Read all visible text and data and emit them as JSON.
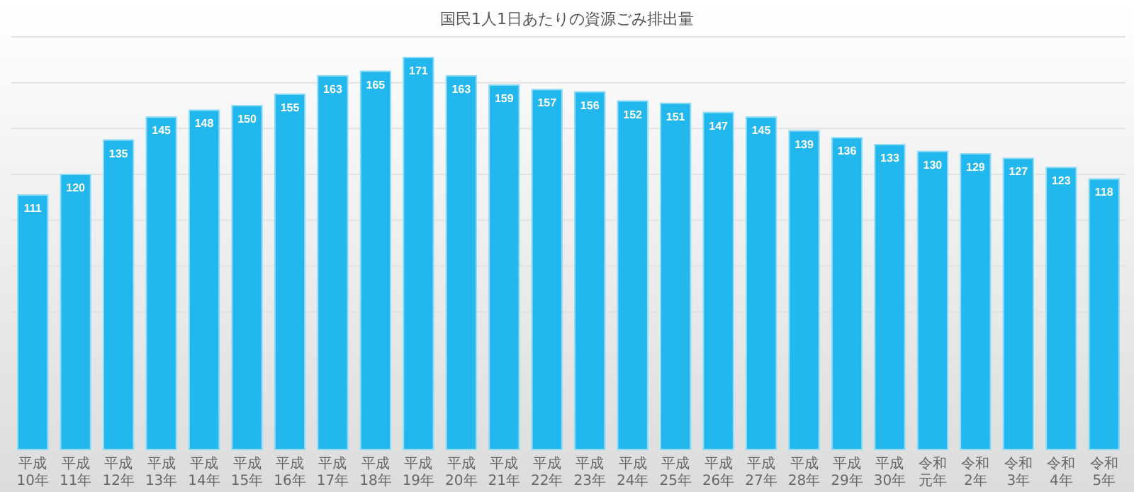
{
  "chart_data": {
    "type": "bar",
    "title": "国民1人1日あたりの資源ごみ排出量",
    "categories": [
      "平成10年",
      "平成11年",
      "平成12年",
      "平成13年",
      "平成14年",
      "平成15年",
      "平成16年",
      "平成17年",
      "平成18年",
      "平成19年",
      "平成20年",
      "平成21年",
      "平成22年",
      "平成23年",
      "平成24年",
      "平成25年",
      "平成26年",
      "平成27年",
      "平成28年",
      "平成29年",
      "平成30年",
      "令和元年",
      "令和2年",
      "令和3年",
      "令和4年",
      "令和5年"
    ],
    "values": [
      111,
      120,
      135,
      145,
      148,
      150,
      155,
      163,
      165,
      171,
      163,
      159,
      157,
      156,
      152,
      151,
      147,
      145,
      139,
      136,
      133,
      130,
      129,
      127,
      123,
      118
    ],
    "color": "#22b8ee",
    "ylim": [
      0,
      180
    ],
    "grid": "y",
    "tick_labels": "x",
    "data_labels": true
  }
}
